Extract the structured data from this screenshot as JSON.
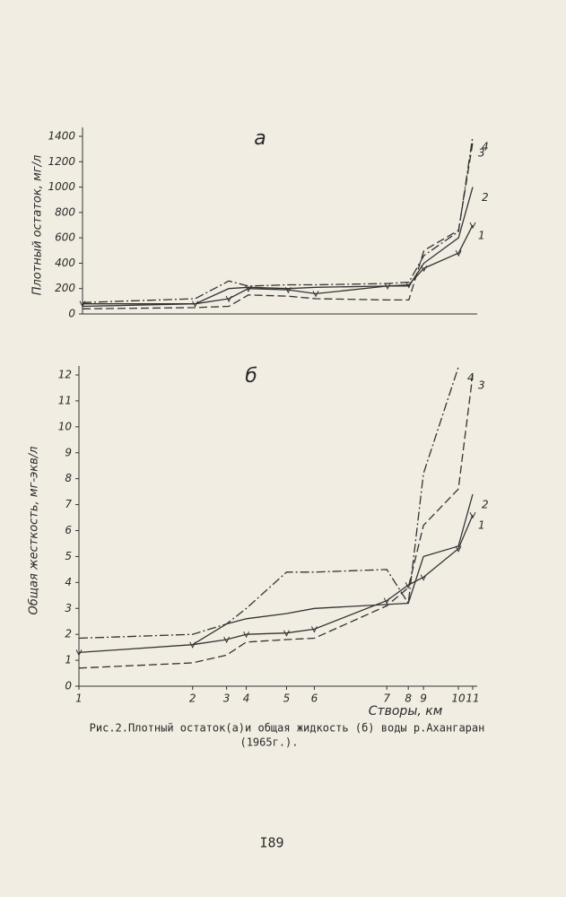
{
  "chart_data": [
    {
      "type": "line",
      "title": "а",
      "ylabel": "Плотный остаток, мг/л",
      "x": [
        0,
        12.7,
        16.5,
        18.7,
        23.2,
        26.3,
        34.4,
        36.8,
        38.5,
        42.4,
        44
      ],
      "xlim": [
        0,
        44
      ],
      "ylim": [
        0,
        1400
      ],
      "yticks": [
        0,
        200,
        400,
        600,
        800,
        1000,
        1200,
        1400
      ],
      "series": [
        {
          "name": "1",
          "color": "#333333",
          "style": "solid",
          "marker": "v",
          "values": [
            80,
            80,
            120,
            200,
            190,
            160,
            220,
            230,
            360,
            480,
            700
          ]
        },
        {
          "name": "2",
          "color": "#333333",
          "style": "solid",
          "values": [
            60,
            80,
            200,
            210,
            200,
            210,
            220,
            220,
            400,
            600,
            1000
          ]
        },
        {
          "name": "3",
          "color": "#333333",
          "style": "dashed",
          "values": [
            40,
            50,
            60,
            150,
            140,
            120,
            110,
            110,
            500,
            660,
            1350
          ]
        },
        {
          "name": "4",
          "color": "#333333",
          "style": "dashdot",
          "values": [
            90,
            120,
            260,
            220,
            230,
            230,
            240,
            250,
            460,
            650,
            1400
          ]
        }
      ]
    },
    {
      "type": "line",
      "title": "б",
      "ylabel": "Общая жесткость, мг-экв/л",
      "xlabel": "Створы, км",
      "x": [
        0,
        12.7,
        16.5,
        18.7,
        23.2,
        26.3,
        34.4,
        36.8,
        38.5,
        42.4,
        44
      ],
      "xlim": [
        0,
        44
      ],
      "xticks": [
        {
          "value": 0,
          "label": "1"
        },
        {
          "value": 12.7,
          "label": "2"
        },
        {
          "value": 16.5,
          "label": "3"
        },
        {
          "value": 18.7,
          "label": "4"
        },
        {
          "value": 23.2,
          "label": "5"
        },
        {
          "value": 26.3,
          "label": "6"
        },
        {
          "value": 34.4,
          "label": "7"
        },
        {
          "value": 36.8,
          "label": "8"
        },
        {
          "value": 38.5,
          "label": "9"
        },
        {
          "value": 42.4,
          "label": "10"
        },
        {
          "value": 44,
          "label": "11"
        }
      ],
      "ylim": [
        0,
        12
      ],
      "yticks": [
        0,
        1,
        2,
        3,
        4,
        5,
        6,
        7,
        8,
        9,
        10,
        11,
        12
      ],
      "series": [
        {
          "name": "1",
          "color": "#333333",
          "style": "solid",
          "marker": "v",
          "values": [
            1.3,
            1.6,
            1.8,
            2.0,
            2.05,
            2.2,
            3.3,
            3.9,
            4.2,
            5.3,
            6.6
          ]
        },
        {
          "name": "2",
          "color": "#333333",
          "style": "solid",
          "values": [
            null,
            1.6,
            2.4,
            2.6,
            2.8,
            3.0,
            3.15,
            3.2,
            5.0,
            5.4,
            7.4
          ]
        },
        {
          "name": "3",
          "color": "#333333",
          "style": "dashed",
          "values": [
            0.7,
            0.9,
            1.2,
            1.7,
            1.8,
            1.85,
            3.1,
            3.8,
            6.2,
            7.6,
            12
          ]
        },
        {
          "name": "4",
          "color": "#333333",
          "style": "dashdot",
          "values": [
            1.85,
            2.0,
            2.4,
            3.0,
            4.4,
            4.4,
            4.5,
            3.2,
            8.2,
            12.3,
            null
          ]
        }
      ]
    }
  ],
  "caption": [
    "Рис.2.Плотный остаток(а)и общая жидкость (б) воды р.Ахангаран",
    "(1965г.)."
  ],
  "page_number": "I89"
}
